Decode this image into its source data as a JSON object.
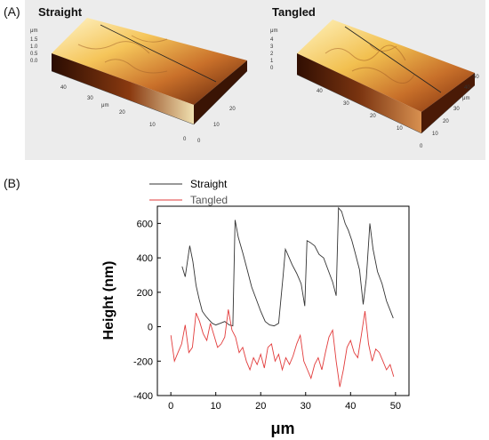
{
  "panel_a_label": "(A)",
  "panel_b_label": "(B)",
  "afm": {
    "left_title": "Straight",
    "right_title": "Tangled",
    "left_z_unit": "μm",
    "left_z_ticks": [
      "1.5",
      "1.0",
      "0.5",
      "0.0"
    ],
    "left_x_unit": "μm",
    "left_x_ticks": [
      "40",
      "30",
      "20",
      "10",
      "0"
    ],
    "left_y_ticks": [
      "0",
      "10",
      "20"
    ],
    "right_z_unit": "μm",
    "right_z_ticks": [
      "4",
      "3",
      "2",
      "1",
      "0"
    ],
    "right_y_unit": "μm",
    "right_x_ticks": [
      "40",
      "30",
      "20",
      "10"
    ],
    "right_y_ticks": [
      "0",
      "10",
      "20",
      "30",
      "40",
      "50"
    ]
  },
  "chart_data": {
    "type": "line",
    "xlabel": "μm",
    "ylabel": "Height (nm)",
    "xlim": [
      -3,
      53
    ],
    "ylim": [
      -400,
      700
    ],
    "xticks": [
      0,
      10,
      20,
      30,
      40,
      50
    ],
    "yticks": [
      -400,
      -200,
      0,
      200,
      400,
      600
    ],
    "legend_position": "top-left",
    "series": [
      {
        "name": "Straight",
        "color": "#333333",
        "x": [
          2.5,
          3.2,
          4.2,
          4.9,
          5.6,
          6.3,
          7.0,
          7.8,
          8.5,
          9.2,
          10.0,
          11.0,
          12.0,
          13.0,
          13.8,
          14.3,
          15.0,
          16.0,
          17.0,
          18.0,
          19.0,
          20.0,
          21.0,
          22.0,
          23.0,
          24.0,
          25.0,
          25.5,
          26.0,
          27.0,
          28.0,
          29.0,
          29.8,
          30.3,
          31.0,
          32.0,
          33.0,
          34.0,
          35.0,
          36.0,
          36.8,
          37.3,
          38.0,
          38.8,
          39.5,
          40.3,
          41.0,
          42.0,
          42.8,
          43.5,
          44.3,
          45.0,
          46.0,
          47.0,
          48.0,
          49.5
        ],
        "y": [
          350,
          290,
          470,
          380,
          240,
          160,
          90,
          60,
          40,
          20,
          10,
          20,
          30,
          10,
          5,
          620,
          520,
          430,
          330,
          230,
          160,
          90,
          30,
          10,
          5,
          20,
          300,
          450,
          420,
          360,
          310,
          250,
          120,
          500,
          490,
          470,
          420,
          400,
          330,
          260,
          180,
          690,
          670,
          600,
          560,
          500,
          430,
          330,
          130,
          280,
          600,
          450,
          320,
          250,
          150,
          50
        ]
      },
      {
        "name": "Tangled",
        "color": "#e23b3b",
        "x": [
          0.0,
          0.8,
          1.6,
          2.4,
          3.2,
          4.0,
          4.8,
          5.6,
          6.4,
          7.2,
          8.0,
          8.8,
          9.6,
          10.4,
          11.2,
          12.0,
          12.8,
          13.6,
          14.4,
          15.2,
          16.0,
          16.8,
          17.6,
          18.4,
          19.2,
          20.0,
          20.8,
          21.6,
          22.4,
          23.2,
          24.0,
          24.8,
          25.6,
          26.4,
          27.2,
          28.0,
          28.8,
          29.6,
          30.4,
          31.2,
          32.0,
          32.8,
          33.6,
          34.4,
          35.2,
          36.0,
          36.8,
          37.6,
          38.4,
          39.2,
          40.0,
          40.8,
          41.6,
          42.4,
          43.2,
          44.0,
          44.8,
          45.6,
          46.4,
          47.2,
          48.0,
          48.8,
          49.6
        ],
        "y": [
          -50,
          -200,
          -150,
          -100,
          10,
          -150,
          -120,
          80,
          30,
          -40,
          -80,
          20,
          -50,
          -120,
          -100,
          -60,
          100,
          -20,
          -60,
          -150,
          -120,
          -200,
          -250,
          -180,
          -220,
          -160,
          -240,
          -120,
          -100,
          -200,
          -160,
          -250,
          -180,
          -220,
          -170,
          -100,
          -50,
          -200,
          -250,
          -300,
          -220,
          -180,
          -250,
          -150,
          -60,
          -20,
          -200,
          -350,
          -250,
          -120,
          -80,
          -150,
          -180,
          -50,
          90,
          -100,
          -200,
          -130,
          -150,
          -200,
          -250,
          -220,
          -290
        ]
      }
    ]
  }
}
